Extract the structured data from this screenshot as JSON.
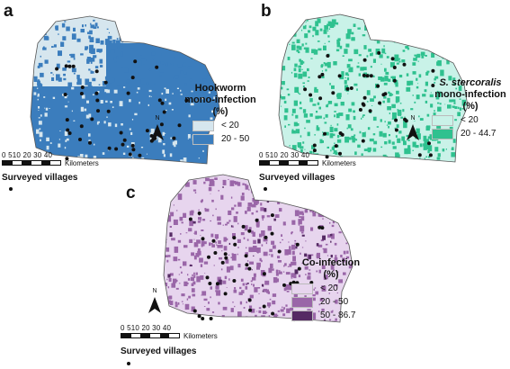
{
  "panels": [
    {
      "id": "a",
      "letter": "a",
      "legend_title_line1": "Hookworm",
      "legend_title_line2": "mono-infection",
      "legend_title_line3": "(%)",
      "title_italic": false,
      "low_color": "#d6e6ee",
      "high_color": "#3b7dbd",
      "top_color": "",
      "classes": [
        {
          "label": "< 20",
          "color": "#d6e6ee"
        },
        {
          "label": "20 - 50",
          "color": "#3b7dbd"
        }
      ]
    },
    {
      "id": "b",
      "letter": "b",
      "legend_title_line1": "S. stercoralis",
      "legend_title_line2": "mono-infection",
      "legend_title_line3": "(%)",
      "title_italic": true,
      "low_color": "#c9f2e8",
      "high_color": "#2fc18f",
      "top_color": "",
      "classes": [
        {
          "label": "< 20",
          "color": "#c9f2e8"
        },
        {
          "label": "20 - 44.7",
          "color": "#2fc18f"
        }
      ]
    },
    {
      "id": "c",
      "letter": "c",
      "legend_title_line1": "Co-infection",
      "legend_title_line2": "(%)",
      "legend_title_line3": "",
      "title_italic": false,
      "low_color": "#e7d5ee",
      "high_color": "#9a66a8",
      "top_color": "#552a64",
      "classes": [
        {
          "label": "< 20",
          "color": "#e7d5ee"
        },
        {
          "label": "20 - 50",
          "color": "#9a66a8"
        },
        {
          "label": "50 - 86.7",
          "color": "#552a64"
        }
      ]
    }
  ],
  "scale": {
    "ticks": "0 510 20  30  40",
    "unit": "Kilometers"
  },
  "north_label": "N",
  "surveyed_label": "Surveyed villages"
}
